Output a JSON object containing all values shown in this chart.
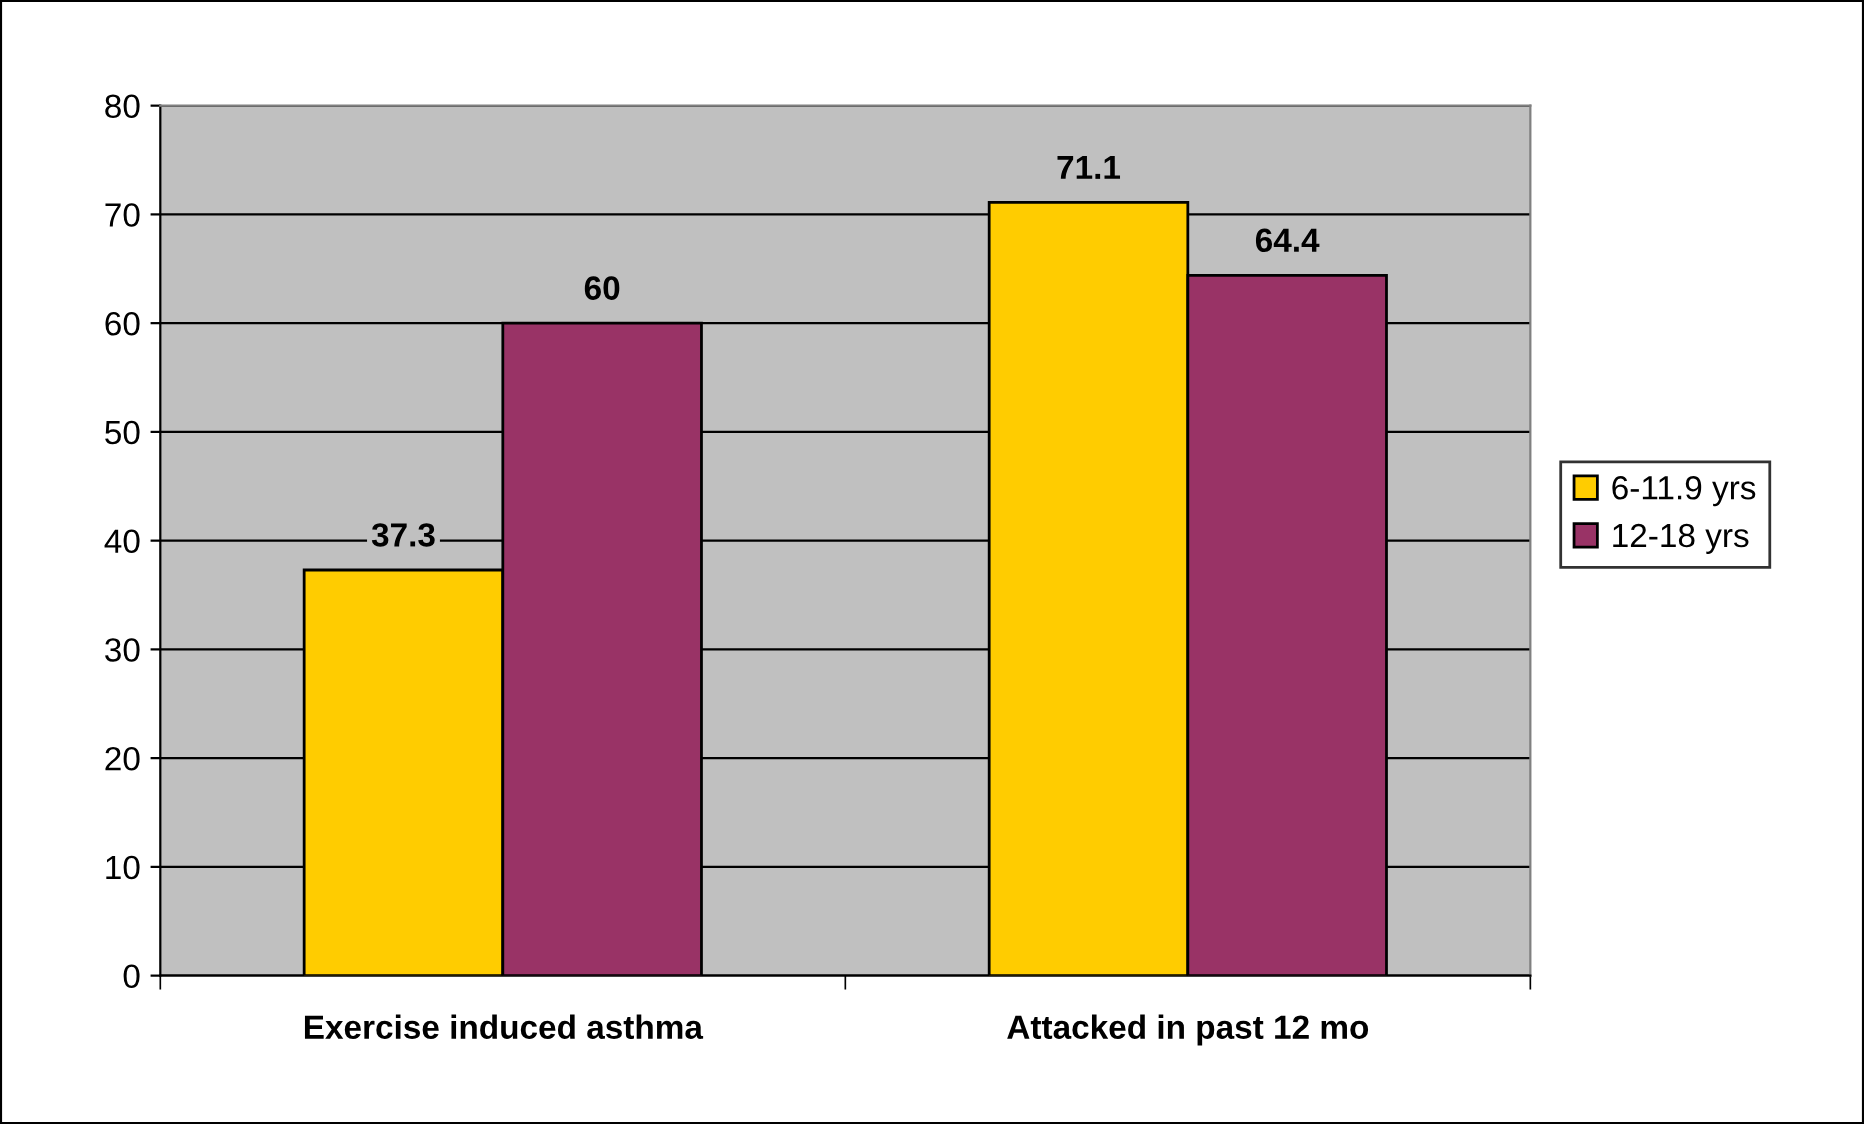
{
  "chart_data": {
    "type": "bar",
    "categories": [
      "Exercise induced asthma",
      "Attacked in past 12 mo"
    ],
    "series": [
      {
        "name": "6-11.9 yrs",
        "color": "#ffcc00",
        "values": [
          37.3,
          71.1
        ]
      },
      {
        "name": "12-18 yrs",
        "color": "#993366",
        "values": [
          60,
          64.4
        ]
      }
    ],
    "ylim": [
      0,
      80
    ],
    "yticks": [
      0,
      10,
      20,
      30,
      40,
      50,
      60,
      70,
      80
    ],
    "grid": "y",
    "legend": "right",
    "data_labels": true
  }
}
